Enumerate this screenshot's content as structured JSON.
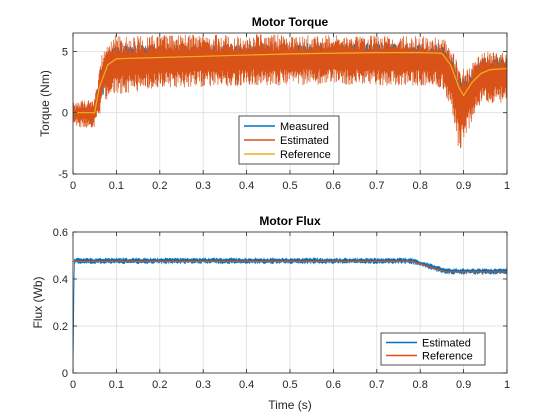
{
  "chart_data": [
    {
      "type": "line",
      "title": "Motor Torque",
      "xlabel": "",
      "ylabel": "Torque (Nm)",
      "xlim": [
        0,
        1
      ],
      "ylim": [
        -5,
        6.5
      ],
      "xticks": [
        "0",
        "0.1",
        "0.2",
        "0.3",
        "0.4",
        "0.5",
        "0.6",
        "0.7",
        "0.8",
        "0.9",
        "1"
      ],
      "xtick_values": [
        0,
        0.1,
        0.2,
        0.3,
        0.4,
        0.5,
        0.6,
        0.7,
        0.8,
        0.9,
        1
      ],
      "yticks": [
        "-5",
        "0",
        "5"
      ],
      "ytick_values": [
        -5,
        0,
        5
      ],
      "grid": true,
      "legend": "bottom-center",
      "series": [
        {
          "name": "Measured",
          "color": "#0072BD",
          "band_top": [
            [
              0,
              0
            ],
            [
              0.02,
              0.1
            ],
            [
              0.05,
              0.8
            ],
            [
              0.07,
              4.5
            ],
            [
              0.09,
              5.2
            ],
            [
              0.1,
              5.5
            ],
            [
              0.2,
              5.5
            ],
            [
              0.4,
              5.6
            ],
            [
              0.6,
              5.7
            ],
            [
              0.8,
              5.6
            ],
            [
              0.85,
              5.6
            ],
            [
              0.87,
              4.8
            ],
            [
              0.89,
              3.0
            ],
            [
              0.91,
              3.2
            ],
            [
              0.94,
              4.5
            ],
            [
              1,
              4.5
            ]
          ],
          "band_bottom": [
            [
              0,
              -0.4
            ],
            [
              0.02,
              -0.4
            ],
            [
              0.05,
              -0.2
            ],
            [
              0.07,
              1.5
            ],
            [
              0.09,
              2.8
            ],
            [
              0.1,
              3.0
            ],
            [
              0.2,
              3.3
            ],
            [
              0.4,
              3.5
            ],
            [
              0.6,
              3.6
            ],
            [
              0.8,
              3.5
            ],
            [
              0.85,
              3.5
            ],
            [
              0.87,
              2.5
            ],
            [
              0.89,
              0.0
            ],
            [
              0.91,
              0.3
            ],
            [
              0.94,
              2.2
            ],
            [
              1,
              2.4
            ]
          ]
        },
        {
          "name": "Estimated",
          "color": "#D95319",
          "band_top": [
            [
              0,
              0.8
            ],
            [
              0.02,
              1.0
            ],
            [
              0.05,
              1.2
            ],
            [
              0.07,
              5.5
            ],
            [
              0.09,
              6.3
            ],
            [
              0.1,
              6.3
            ],
            [
              0.2,
              6.3
            ],
            [
              0.4,
              6.4
            ],
            [
              0.6,
              6.3
            ],
            [
              0.8,
              6.3
            ],
            [
              0.85,
              6.1
            ],
            [
              0.87,
              5.5
            ],
            [
              0.89,
              4.0
            ],
            [
              0.91,
              3.5
            ],
            [
              0.94,
              5.0
            ],
            [
              1,
              5.0
            ]
          ],
          "band_bottom": [
            [
              0,
              -1.0
            ],
            [
              0.02,
              -1.2
            ],
            [
              0.05,
              -1.2
            ],
            [
              0.07,
              0.5
            ],
            [
              0.09,
              1.2
            ],
            [
              0.1,
              1.5
            ],
            [
              0.2,
              2.0
            ],
            [
              0.4,
              2.2
            ],
            [
              0.6,
              2.3
            ],
            [
              0.8,
              2.2
            ],
            [
              0.85,
              2.0
            ],
            [
              0.87,
              0.5
            ],
            [
              0.89,
              -3.2
            ],
            [
              0.91,
              -1.5
            ],
            [
              0.94,
              0.8
            ],
            [
              1,
              0.8
            ]
          ]
        },
        {
          "name": "Reference",
          "color": "#EDB120",
          "points": [
            [
              0,
              0
            ],
            [
              0.05,
              0
            ],
            [
              0.06,
              2.0
            ],
            [
              0.08,
              3.9
            ],
            [
              0.1,
              4.4
            ],
            [
              0.2,
              4.5
            ],
            [
              0.3,
              4.6
            ],
            [
              0.4,
              4.7
            ],
            [
              0.5,
              4.8
            ],
            [
              0.6,
              4.85
            ],
            [
              0.7,
              4.9
            ],
            [
              0.8,
              4.9
            ],
            [
              0.85,
              4.85
            ],
            [
              0.87,
              3.9
            ],
            [
              0.89,
              2.0
            ],
            [
              0.9,
              1.4
            ],
            [
              0.92,
              2.5
            ],
            [
              0.94,
              3.2
            ],
            [
              0.96,
              3.5
            ],
            [
              1,
              3.6
            ]
          ]
        }
      ]
    },
    {
      "type": "line",
      "title": "Motor Flux",
      "xlabel": "Time (s)",
      "ylabel": "Flux (Wb)",
      "xlim": [
        0,
        1
      ],
      "ylim": [
        0,
        0.6
      ],
      "xticks": [
        "0",
        "0.1",
        "0.2",
        "0.3",
        "0.4",
        "0.5",
        "0.6",
        "0.7",
        "0.8",
        "0.9",
        "1"
      ],
      "xtick_values": [
        0,
        0.1,
        0.2,
        0.3,
        0.4,
        0.5,
        0.6,
        0.7,
        0.8,
        0.9,
        1
      ],
      "yticks": [
        "0",
        "0.2",
        "0.4",
        "0.6"
      ],
      "ytick_values": [
        0,
        0.2,
        0.4,
        0.6
      ],
      "grid": true,
      "legend": "bottom-right",
      "series": [
        {
          "name": "Estimated",
          "color": "#0072BD",
          "band_top": [
            [
              0,
              0
            ],
            [
              0.003,
              0.49
            ],
            [
              0.78,
              0.49
            ],
            [
              0.86,
              0.445
            ],
            [
              1,
              0.445
            ]
          ],
          "band_bottom": [
            [
              0,
              0
            ],
            [
              0.003,
              0.465
            ],
            [
              0.78,
              0.465
            ],
            [
              0.86,
              0.42
            ],
            [
              1,
              0.42
            ]
          ]
        },
        {
          "name": "Reference",
          "color": "#D95319",
          "points": [
            [
              0,
              0.475
            ],
            [
              0.78,
              0.475
            ],
            [
              0.86,
              0.43
            ],
            [
              1,
              0.43
            ]
          ]
        }
      ]
    }
  ]
}
